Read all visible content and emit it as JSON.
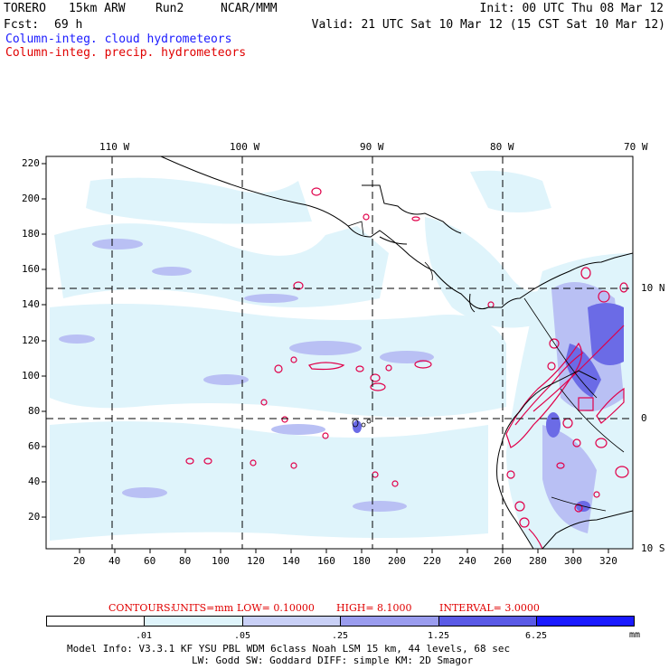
{
  "header": {
    "model": "TORERO",
    "res": "15km ARW",
    "run": "Run2",
    "org": "NCAR/MMM",
    "init": "Init: 00 UTC Thu 08 Mar 12",
    "fcst_label": "Fcst:",
    "fcst_value": "69 h",
    "valid": "Valid: 21 UTC Sat 10 Mar 12 (15 CST Sat 10 Mar 12)",
    "field1": "Column-integ. cloud hydrometeors",
    "field2": "Column-integ. precip. hydrometeors"
  },
  "colors": {
    "field1": "#1a1aff",
    "field2": "#e00000",
    "cloud_light": "#dff4fb",
    "cloud_mid": "#aab0f4",
    "cloud_dark": "#6b6be6",
    "precip": "#e0004a"
  },
  "map": {
    "lon_labels": [
      "110 W",
      "100 W",
      "90 W",
      "80 W",
      "70 W"
    ],
    "lat_labels": [
      "10 N",
      "0",
      "10 S"
    ],
    "y_ticks": [
      "220",
      "200",
      "180",
      "160",
      "140",
      "120",
      "100",
      "80",
      "60",
      "40",
      "20"
    ],
    "x_ticks": [
      "20",
      "40",
      "60",
      "80",
      "100",
      "120",
      "140",
      "160",
      "180",
      "200",
      "220",
      "240",
      "260",
      "280",
      "300",
      "320"
    ]
  },
  "contours_line": {
    "label": "CONTOURS:",
    "units": "UNITS=mm",
    "low": "LOW= 0.10000",
    "high": "HIGH= 8.1000",
    "interval": "INTERVAL= 3.0000"
  },
  "colorbar": {
    "labels": [
      ".01",
      ".05",
      ".25",
      "1.25",
      "6.25"
    ],
    "unit": "mm",
    "fills": [
      "#ffffff",
      "#dff4fb",
      "#bfe9f7",
      "#aab0f4",
      "#7a7ae8",
      "#4a4ae0",
      "#1a1aff"
    ]
  },
  "footer": {
    "line1": "Model Info: V3.3.1   KF    YSU PBL  WDM 6class  Noah LSM  15 km,   44 levels,   68 sec",
    "line2": "LW: Godd SW: Goddard DIFF: simple KM: 2D Smagor"
  }
}
